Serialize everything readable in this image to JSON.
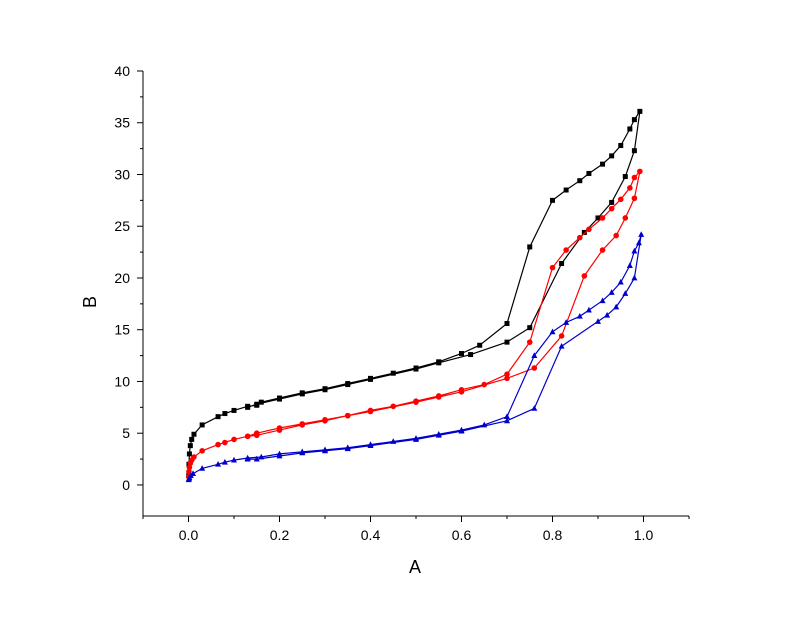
{
  "chart_data": {
    "type": "line",
    "title": "",
    "xlabel": "A",
    "ylabel": "B",
    "xlim": [
      -0.1,
      1.1
    ],
    "ylim": [
      -3,
      40
    ],
    "x_ticks": [
      0.0,
      0.2,
      0.4,
      0.6,
      0.8,
      1.0
    ],
    "x_tick_labels": [
      "0.0",
      "0.2",
      "0.4",
      "0.6",
      "0.8",
      "1.0"
    ],
    "y_ticks": [
      0,
      5,
      10,
      15,
      20,
      25,
      30,
      35,
      40
    ],
    "y_tick_labels": [
      "0",
      "5",
      "10",
      "15",
      "20",
      "25",
      "30",
      "35",
      "40"
    ],
    "grid": false,
    "legend": "none",
    "series": [
      {
        "color": "#000000",
        "marker": "square",
        "points": [
          [
            0.0005,
            0.9
          ],
          [
            0.001,
            2.0
          ],
          [
            0.002,
            3.0
          ],
          [
            0.004,
            3.8
          ],
          [
            0.007,
            4.4
          ],
          [
            0.012,
            4.9
          ],
          [
            0.03,
            5.8
          ],
          [
            0.065,
            6.6
          ],
          [
            0.08,
            6.9
          ],
          [
            0.1,
            7.2
          ],
          [
            0.13,
            7.6
          ],
          [
            0.15,
            7.7
          ],
          [
            0.16,
            8.0
          ],
          [
            0.2,
            8.4
          ],
          [
            0.25,
            8.9
          ],
          [
            0.3,
            9.3
          ],
          [
            0.35,
            9.8
          ],
          [
            0.4,
            10.3
          ],
          [
            0.45,
            10.8
          ],
          [
            0.5,
            11.3
          ],
          [
            0.55,
            11.9
          ],
          [
            0.6,
            12.7
          ],
          [
            0.64,
            13.5
          ],
          [
            0.7,
            15.6
          ],
          [
            0.75,
            23.0
          ],
          [
            0.8,
            27.5
          ],
          [
            0.83,
            28.5
          ],
          [
            0.86,
            29.4
          ],
          [
            0.88,
            30.1
          ],
          [
            0.91,
            31.0
          ],
          [
            0.93,
            31.8
          ],
          [
            0.95,
            32.8
          ],
          [
            0.97,
            34.4
          ],
          [
            0.98,
            35.3
          ],
          [
            0.992,
            36.1
          ],
          [
            0.98,
            32.3
          ],
          [
            0.96,
            29.8
          ],
          [
            0.93,
            27.3
          ],
          [
            0.9,
            25.8
          ],
          [
            0.87,
            24.4
          ],
          [
            0.82,
            21.4
          ],
          [
            0.75,
            15.2
          ],
          [
            0.7,
            13.8
          ],
          [
            0.62,
            12.6
          ],
          [
            0.55,
            11.8
          ],
          [
            0.5,
            11.2
          ],
          [
            0.4,
            10.2
          ],
          [
            0.35,
            9.7
          ],
          [
            0.3,
            9.2
          ],
          [
            0.25,
            8.8
          ],
          [
            0.2,
            8.3
          ],
          [
            0.15,
            7.8
          ],
          [
            0.13,
            7.5
          ]
        ]
      },
      {
        "color": "#ff0000",
        "marker": "circle",
        "points": [
          [
            0.0005,
            0.8
          ],
          [
            0.001,
            1.3
          ],
          [
            0.002,
            1.7
          ],
          [
            0.004,
            2.1
          ],
          [
            0.007,
            2.4
          ],
          [
            0.012,
            2.7
          ],
          [
            0.03,
            3.3
          ],
          [
            0.065,
            3.9
          ],
          [
            0.08,
            4.1
          ],
          [
            0.1,
            4.4
          ],
          [
            0.13,
            4.7
          ],
          [
            0.15,
            5.0
          ],
          [
            0.2,
            5.5
          ],
          [
            0.25,
            5.9
          ],
          [
            0.3,
            6.3
          ],
          [
            0.35,
            6.7
          ],
          [
            0.4,
            7.2
          ],
          [
            0.45,
            7.6
          ],
          [
            0.5,
            8.1
          ],
          [
            0.55,
            8.6
          ],
          [
            0.6,
            9.2
          ],
          [
            0.65,
            9.7
          ],
          [
            0.7,
            10.7
          ],
          [
            0.75,
            13.8
          ],
          [
            0.8,
            21.0
          ],
          [
            0.83,
            22.7
          ],
          [
            0.86,
            23.9
          ],
          [
            0.88,
            24.7
          ],
          [
            0.91,
            25.8
          ],
          [
            0.93,
            26.7
          ],
          [
            0.95,
            27.6
          ],
          [
            0.97,
            28.7
          ],
          [
            0.98,
            29.7
          ],
          [
            0.992,
            30.3
          ],
          [
            0.98,
            27.7
          ],
          [
            0.96,
            25.8
          ],
          [
            0.94,
            24.1
          ],
          [
            0.91,
            22.7
          ],
          [
            0.87,
            20.2
          ],
          [
            0.82,
            14.4
          ],
          [
            0.76,
            11.3
          ],
          [
            0.7,
            10.3
          ],
          [
            0.6,
            9.0
          ],
          [
            0.55,
            8.5
          ],
          [
            0.5,
            8.0
          ],
          [
            0.4,
            7.1
          ],
          [
            0.35,
            6.7
          ],
          [
            0.3,
            6.2
          ],
          [
            0.25,
            5.8
          ],
          [
            0.2,
            5.3
          ],
          [
            0.15,
            4.8
          ],
          [
            0.13,
            4.7
          ]
        ]
      },
      {
        "color": "#0000cc",
        "marker": "triangle",
        "points": [
          [
            0.0005,
            0.5
          ],
          [
            0.001,
            0.6
          ],
          [
            0.002,
            0.7
          ],
          [
            0.005,
            0.9
          ],
          [
            0.01,
            1.1
          ],
          [
            0.03,
            1.6
          ],
          [
            0.065,
            2.0
          ],
          [
            0.08,
            2.2
          ],
          [
            0.1,
            2.4
          ],
          [
            0.13,
            2.6
          ],
          [
            0.16,
            2.7
          ],
          [
            0.2,
            3.0
          ],
          [
            0.25,
            3.2
          ],
          [
            0.3,
            3.4
          ],
          [
            0.35,
            3.6
          ],
          [
            0.4,
            3.9
          ],
          [
            0.45,
            4.2
          ],
          [
            0.5,
            4.5
          ],
          [
            0.55,
            4.9
          ],
          [
            0.6,
            5.3
          ],
          [
            0.65,
            5.8
          ],
          [
            0.7,
            6.6
          ],
          [
            0.76,
            12.5
          ],
          [
            0.8,
            14.8
          ],
          [
            0.83,
            15.7
          ],
          [
            0.86,
            16.3
          ],
          [
            0.88,
            16.9
          ],
          [
            0.91,
            17.8
          ],
          [
            0.93,
            18.6
          ],
          [
            0.95,
            19.6
          ],
          [
            0.97,
            21.2
          ],
          [
            0.98,
            22.6
          ],
          [
            0.99,
            23.4
          ],
          [
            0.995,
            24.2
          ],
          [
            0.98,
            20.0
          ],
          [
            0.96,
            18.5
          ],
          [
            0.94,
            17.2
          ],
          [
            0.92,
            16.4
          ],
          [
            0.9,
            15.8
          ],
          [
            0.82,
            13.4
          ],
          [
            0.76,
            7.4
          ],
          [
            0.7,
            6.2
          ],
          [
            0.6,
            5.2
          ],
          [
            0.55,
            4.8
          ],
          [
            0.5,
            4.4
          ],
          [
            0.4,
            3.8
          ],
          [
            0.35,
            3.5
          ],
          [
            0.3,
            3.3
          ],
          [
            0.25,
            3.1
          ],
          [
            0.2,
            2.8
          ],
          [
            0.15,
            2.5
          ],
          [
            0.13,
            2.5
          ]
        ]
      }
    ]
  }
}
